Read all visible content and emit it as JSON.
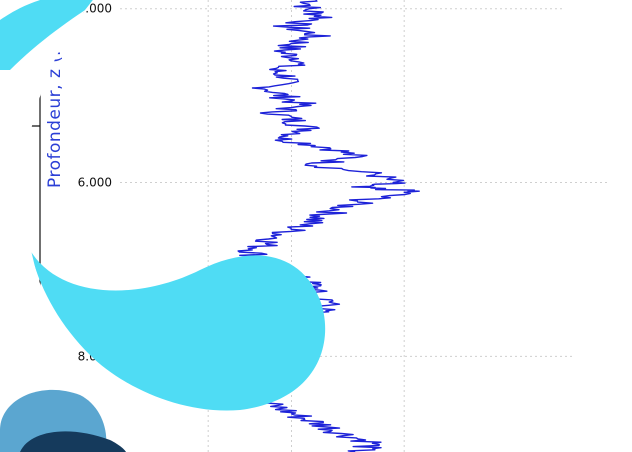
{
  "chart_data": {
    "type": "line",
    "title": "",
    "ylabel": "Profondeur, z (m)",
    "xlabel": "",
    "ylim": [
      3.9,
      9.1
    ],
    "y_axis_inverted": true,
    "y_ticks": [
      {
        "value": 4.0,
        "label": "4.000"
      },
      {
        "value": 6.0,
        "label": "6.000"
      },
      {
        "value": 8.0,
        "label": "8.000"
      }
    ],
    "x_gridlines": [
      0.18,
      0.35,
      0.58
    ],
    "grid": true,
    "series": [
      {
        "color": "#1d22d8",
        "points": [
          [
            3.9,
            0.4
          ],
          [
            4.0,
            0.38
          ],
          [
            4.1,
            0.42
          ],
          [
            4.2,
            0.34
          ],
          [
            4.3,
            0.4
          ],
          [
            4.4,
            0.36
          ],
          [
            4.5,
            0.33
          ],
          [
            4.6,
            0.38
          ],
          [
            4.7,
            0.31
          ],
          [
            4.8,
            0.35
          ],
          [
            4.9,
            0.3
          ],
          [
            5.0,
            0.33
          ],
          [
            5.1,
            0.37
          ],
          [
            5.2,
            0.32
          ],
          [
            5.3,
            0.36
          ],
          [
            5.4,
            0.39
          ],
          [
            5.5,
            0.33
          ],
          [
            5.6,
            0.43
          ],
          [
            5.7,
            0.48
          ],
          [
            5.8,
            0.4
          ],
          [
            5.9,
            0.52
          ],
          [
            6.0,
            0.56
          ],
          [
            6.05,
            0.47
          ],
          [
            6.1,
            0.6
          ],
          [
            6.2,
            0.5
          ],
          [
            6.3,
            0.45
          ],
          [
            6.4,
            0.41
          ],
          [
            6.5,
            0.37
          ],
          [
            6.6,
            0.33
          ],
          [
            6.7,
            0.3
          ],
          [
            6.8,
            0.27
          ],
          [
            6.9,
            0.29
          ],
          [
            7.0,
            0.32
          ],
          [
            7.1,
            0.36
          ],
          [
            7.2,
            0.4
          ],
          [
            7.3,
            0.38
          ],
          [
            7.4,
            0.44
          ],
          [
            7.5,
            0.39
          ],
          [
            7.6,
            0.34
          ],
          [
            7.7,
            0.3
          ],
          [
            7.8,
            0.28
          ],
          [
            7.9,
            0.32
          ],
          [
            8.0,
            0.27
          ],
          [
            8.1,
            0.3
          ],
          [
            8.2,
            0.34
          ],
          [
            8.3,
            0.29
          ],
          [
            8.4,
            0.31
          ],
          [
            8.5,
            0.28
          ],
          [
            8.6,
            0.33
          ],
          [
            8.7,
            0.37
          ],
          [
            8.8,
            0.42
          ],
          [
            8.9,
            0.46
          ],
          [
            9.0,
            0.52
          ],
          [
            9.1,
            0.48
          ]
        ]
      }
    ],
    "side_tag": "ent",
    "colors": {
      "trace": "#1d22d8",
      "axis_title": "#2b3fd6",
      "grid": "#cfcfcf",
      "decor_cyan": "#4fdcf4",
      "decor_dark": "#153a5c",
      "decor_light": "#5ba6d0"
    }
  }
}
